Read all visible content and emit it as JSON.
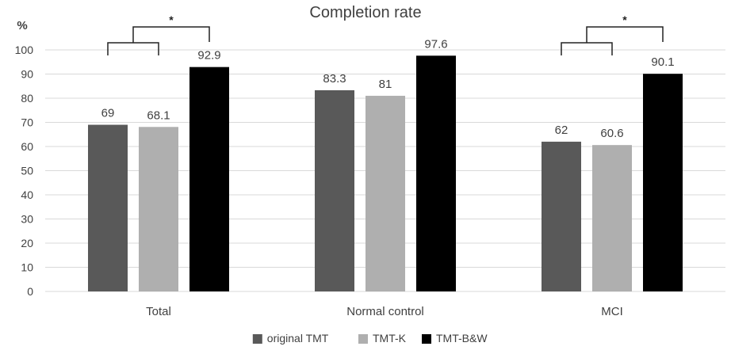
{
  "chart_data": {
    "type": "bar",
    "title": "Completion rate",
    "ylabel": "%",
    "xlabel": "",
    "ylim": [
      0,
      100
    ],
    "ytick_step": 10,
    "yticks": [
      "0",
      "10",
      "20",
      "30",
      "40",
      "50",
      "60",
      "70",
      "80",
      "90",
      "100"
    ],
    "grid": true,
    "legend_position": "bottom",
    "categories": [
      "Total",
      "Normal control",
      "MCI"
    ],
    "series": [
      {
        "name": "original TMT",
        "values": [
          69,
          83.3,
          62
        ],
        "labels": [
          "69",
          "83.3",
          "62"
        ],
        "color": "#595959"
      },
      {
        "name": "TMT-K",
        "values": [
          68.1,
          81,
          60.6
        ],
        "labels": [
          "68.1",
          "81",
          "60.6"
        ],
        "color": "#afafaf"
      },
      {
        "name": "TMT-B&W",
        "values": [
          92.9,
          97.6,
          90.1
        ],
        "labels": [
          "92.9",
          "97.6",
          "90.1"
        ],
        "color": "#000000"
      }
    ],
    "annotations": [
      {
        "category": "Total",
        "text": "*",
        "pair": [
          "original TMT",
          "TMT-K"
        ],
        "versus": "TMT-B&W"
      },
      {
        "category": "MCI",
        "text": "*",
        "pair": [
          "original TMT",
          "TMT-K"
        ],
        "versus": "TMT-B&W"
      }
    ]
  }
}
